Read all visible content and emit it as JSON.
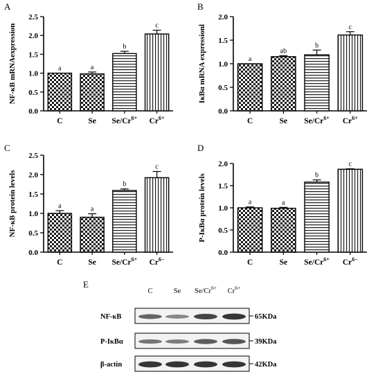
{
  "panels": {
    "A": "A",
    "B": "B",
    "C": "C",
    "D": "D",
    "E": "E"
  },
  "chart_data": [
    {
      "id": "A",
      "type": "bar",
      "ylabel": "NF-κB mRNAexpression",
      "ylim": [
        0,
        2.5
      ],
      "yticks": [
        "0.0",
        "0.5",
        "1.0",
        "1.5",
        "2.0",
        "2.5"
      ],
      "categories": [
        "C",
        "Se",
        "Se/Cr",
        "Cr"
      ],
      "category_sup": [
        "",
        "",
        "6+",
        "6+"
      ],
      "values": [
        1.0,
        0.98,
        1.52,
        2.04
      ],
      "errors": [
        0.0,
        0.05,
        0.06,
        0.1
      ],
      "sig_letters": [
        "a",
        "a",
        "b",
        "c"
      ],
      "patterns": [
        "check",
        "check",
        "hstripe",
        "vstripe"
      ]
    },
    {
      "id": "B",
      "type": "bar",
      "ylabel": "IκBα mRNA expressionl",
      "ylim": [
        0,
        2.0
      ],
      "yticks": [
        "0.0",
        "0.5",
        "1.0",
        "1.5",
        "2.0"
      ],
      "categories": [
        "C",
        "Se",
        "Se/Cr",
        "Cr"
      ],
      "category_sup": [
        "",
        "",
        "6+",
        "6+"
      ],
      "values": [
        1.0,
        1.15,
        1.19,
        1.61
      ],
      "errors": [
        0.0,
        0.02,
        0.1,
        0.07
      ],
      "sig_letters": [
        "a",
        "ab",
        "b",
        "c"
      ],
      "patterns": [
        "check",
        "check",
        "hstripe",
        "vstripe"
      ]
    },
    {
      "id": "C",
      "type": "bar",
      "ylabel": "NF-κB protein levels",
      "ylim": [
        0,
        2.5
      ],
      "yticks": [
        "0.0",
        "0.5",
        "1.0",
        "1.5",
        "2.0",
        "2.5"
      ],
      "categories": [
        "C",
        "Se",
        "Se/Cr",
        "Cr"
      ],
      "category_sup": [
        "",
        "",
        "6+",
        "6−"
      ],
      "values": [
        1.0,
        0.9,
        1.59,
        1.92
      ],
      "errors": [
        0.07,
        0.09,
        0.04,
        0.16
      ],
      "sig_letters": [
        "a",
        "a",
        "b",
        "c"
      ],
      "patterns": [
        "check",
        "check",
        "hstripe",
        "vstripe"
      ]
    },
    {
      "id": "D",
      "type": "bar",
      "ylabel": "P-IκBα protein levels",
      "ylim": [
        0,
        2.0
      ],
      "yticks": [
        "0.0",
        "0.5",
        "1.0",
        "1.5",
        "2.0"
      ],
      "categories": [
        "C",
        "Se",
        "Se/Cr",
        "Cr"
      ],
      "category_sup": [
        "",
        "",
        "6+",
        "6−"
      ],
      "values": [
        1.0,
        0.99,
        1.58,
        1.87
      ],
      "errors": [
        0.02,
        0.02,
        0.05,
        0.01
      ],
      "sig_letters": [
        "a",
        "a",
        "b",
        "c"
      ],
      "patterns": [
        "check",
        "check",
        "hstripe",
        "vstripe"
      ]
    }
  ],
  "blot": {
    "column_labels": [
      "C",
      "Se",
      "Se/Cr",
      "Cr"
    ],
    "column_sups": [
      "",
      "",
      "6+",
      "6+"
    ],
    "rows": [
      {
        "label": "NF-κB",
        "size": "65KDa",
        "intensity": [
          0.65,
          0.45,
          0.85,
          0.95
        ]
      },
      {
        "label": "P-IκBα",
        "size": "39KDa",
        "intensity": [
          0.55,
          0.5,
          0.7,
          0.75
        ]
      },
      {
        "label": "β-actin",
        "size": "42KDa",
        "intensity": [
          0.95,
          0.95,
          0.95,
          0.95
        ]
      }
    ]
  }
}
